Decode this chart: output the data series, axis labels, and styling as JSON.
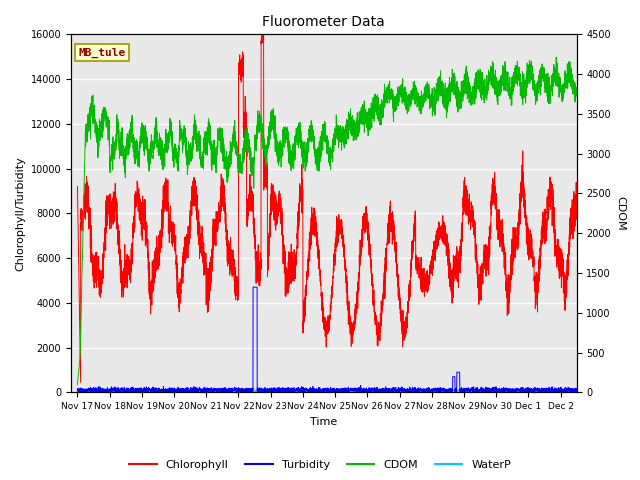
{
  "title": "Fluorometer Data",
  "xlabel": "Time",
  "ylabel_left": "Chlorophyll/Turbidity",
  "ylabel_right": "CDOM",
  "annotation_text": "MB_tule",
  "annotation_color": "#8b0000",
  "annotation_bg": "#ffffcc",
  "annotation_border": "#999900",
  "ylim_left": [
    0,
    16000
  ],
  "ylim_right": [
    0,
    4500
  ],
  "plot_bg_color": "#e8e8e8",
  "fig_bg_color": "#ffffff",
  "x_ticks_labels": [
    "Nov 17",
    "Nov 18",
    "Nov 19",
    "Nov 20",
    "Nov 21",
    "Nov 22",
    "Nov 23",
    "Nov 24",
    "Nov 25",
    "Nov 26",
    "Nov 27",
    "Nov 28",
    "Nov 29",
    "Nov 30",
    "Dec 1",
    "Dec 2"
  ],
  "x_ticks_pos": [
    0,
    1,
    2,
    3,
    4,
    5,
    6,
    7,
    8,
    9,
    10,
    11,
    12,
    13,
    14,
    15
  ],
  "legend_entries": [
    "Chlorophyll",
    "Turbidity",
    "CDOM",
    "WaterP"
  ],
  "legend_colors": [
    "#ff0000",
    "#0000ff",
    "#00bb00",
    "#00ccff"
  ],
  "chlorophyll_color": "#ff0000",
  "turbidity_color": "#0000ff",
  "cdom_color": "#00bb00",
  "waterp_color": "#00ccff",
  "title_fontsize": 10,
  "axis_label_fontsize": 8,
  "tick_fontsize": 7
}
